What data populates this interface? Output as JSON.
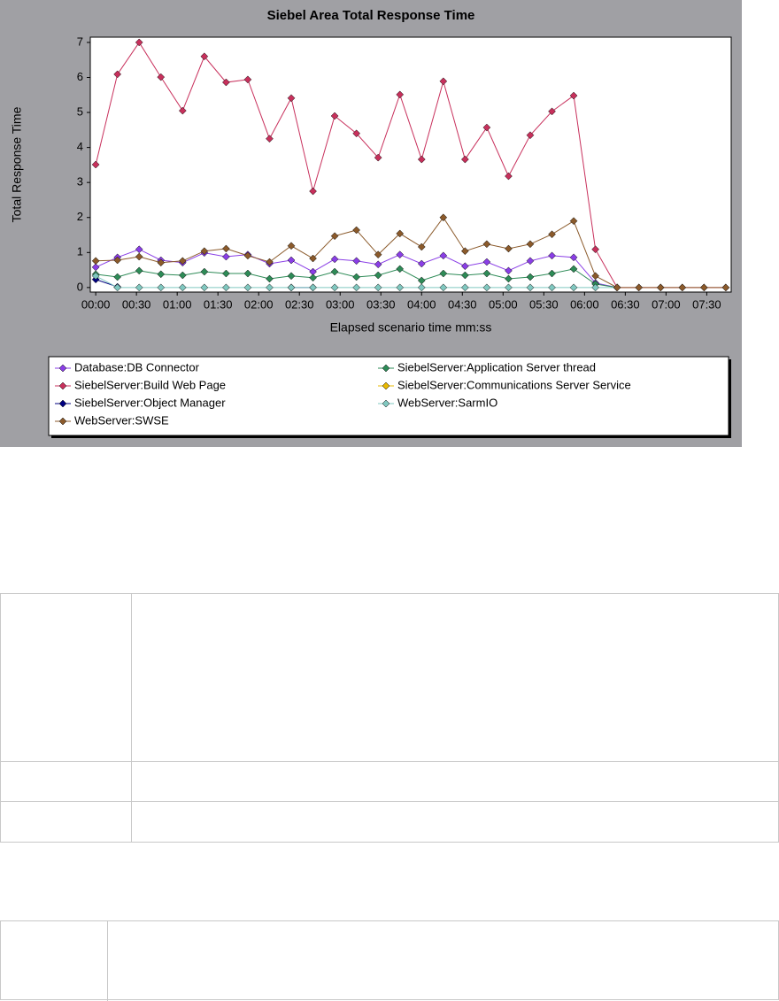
{
  "chart_data": {
    "type": "line",
    "title": "Siebel Area Total Response Time",
    "y_label": "Total Response Time",
    "x_label": "Elapsed scenario time mm:ss",
    "x": [
      0,
      16,
      32,
      48,
      64,
      80,
      96,
      112,
      128,
      144,
      160,
      176,
      192,
      208,
      224,
      240,
      256,
      272,
      288,
      304,
      320,
      336,
      352,
      368,
      384,
      400,
      416,
      432,
      448,
      464
    ],
    "xlim": [
      -4,
      468
    ],
    "xticks": [
      {
        "value": 0,
        "label": "00:00"
      },
      {
        "value": 30,
        "label": "00:30"
      },
      {
        "value": 60,
        "label": "01:00"
      },
      {
        "value": 90,
        "label": "01:30"
      },
      {
        "value": 120,
        "label": "02:00"
      },
      {
        "value": 150,
        "label": "02:30"
      },
      {
        "value": 180,
        "label": "03:00"
      },
      {
        "value": 210,
        "label": "03:30"
      },
      {
        "value": 240,
        "label": "04:00"
      },
      {
        "value": 270,
        "label": "04:30"
      },
      {
        "value": 300,
        "label": "05:00"
      },
      {
        "value": 330,
        "label": "05:30"
      },
      {
        "value": 360,
        "label": "06:00"
      },
      {
        "value": 390,
        "label": "06:30"
      },
      {
        "value": 420,
        "label": "07:00"
      },
      {
        "value": 450,
        "label": "07:30"
      }
    ],
    "ylim": [
      -0.13,
      7.15
    ],
    "yticks": [
      0,
      1,
      2,
      3,
      4,
      5,
      6,
      7
    ],
    "series": [
      {
        "name": "Database:DB Connector",
        "color": "#8a3ee6",
        "values": [
          0.58,
          0.86,
          1.09,
          0.78,
          0.71,
          0.99,
          0.88,
          0.94,
          0.68,
          0.78,
          0.45,
          0.81,
          0.76,
          0.66,
          0.94,
          0.68,
          0.91,
          0.61,
          0.73,
          0.48,
          0.76,
          0.91,
          0.86,
          0.13,
          0,
          null,
          null,
          null,
          null,
          null
        ]
      },
      {
        "name": "SiebelServer:Application Server thread",
        "color": "#2e8b57",
        "values": [
          0.38,
          0.3,
          0.48,
          0.38,
          0.35,
          0.45,
          0.4,
          0.4,
          0.25,
          0.33,
          0.28,
          0.45,
          0.3,
          0.35,
          0.53,
          0.2,
          0.4,
          0.35,
          0.4,
          0.25,
          0.3,
          0.4,
          0.53,
          0.1,
          0,
          null,
          null,
          null,
          null,
          null
        ]
      },
      {
        "name": "SiebelServer:Build Web Page",
        "color": "#c8305c",
        "values": [
          3.51,
          6.09,
          7.0,
          6.01,
          5.05,
          6.6,
          5.86,
          5.94,
          4.25,
          5.41,
          2.75,
          4.9,
          4.4,
          3.71,
          5.51,
          3.66,
          5.89,
          3.66,
          4.57,
          3.18,
          4.35,
          5.03,
          5.48,
          1.09,
          0,
          0,
          0,
          0,
          0,
          0
        ]
      },
      {
        "name": "SiebelServer:Communications Server Service",
        "color": "#e8b800",
        "values": [
          null,
          null,
          null,
          null,
          null,
          null,
          null,
          null,
          null,
          null,
          null,
          null,
          null,
          null,
          null,
          null,
          null,
          null,
          null,
          null,
          null,
          null,
          null,
          null,
          null,
          null,
          null,
          null,
          null,
          null
        ]
      },
      {
        "name": "SiebelServer:Object Manager",
        "color": "#000080",
        "values": [
          0.23,
          0.02,
          null,
          null,
          null,
          null,
          null,
          null,
          null,
          0,
          0,
          null,
          null,
          null,
          null,
          null,
          null,
          null,
          null,
          null,
          null,
          null,
          null,
          null,
          null,
          null,
          null,
          null,
          null,
          null
        ]
      },
      {
        "name": "WebServer:SarmIO",
        "color": "#80c8c0",
        "values": [
          0.33,
          0,
          0,
          0,
          0,
          0,
          0,
          0,
          0,
          0,
          0,
          0,
          0,
          0,
          0,
          0,
          0,
          0,
          0,
          0,
          0,
          0,
          0,
          0,
          0,
          null,
          null,
          null,
          null,
          null
        ]
      },
      {
        "name": "WebServer:SWSE",
        "color": "#8b5a2b",
        "values": [
          0.76,
          0.78,
          0.88,
          0.71,
          0.76,
          1.04,
          1.11,
          0.91,
          0.73,
          1.19,
          0.83,
          1.47,
          1.64,
          0.94,
          1.54,
          1.16,
          2.0,
          1.04,
          1.24,
          1.11,
          1.24,
          1.52,
          1.9,
          0.33,
          0,
          0,
          0,
          0,
          0,
          0
        ]
      }
    ]
  }
}
